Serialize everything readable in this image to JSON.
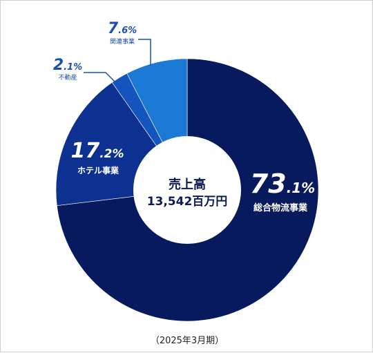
{
  "chart_data": {
    "type": "pie",
    "donut": true,
    "center_title": "売上高",
    "center_value": "13,542百万円",
    "footnote": "（2025年3月期）",
    "slices": [
      {
        "name": "総合物流事業",
        "int": "73",
        "dec": ".1%",
        "value": 73.1,
        "color": "#071a5e"
      },
      {
        "name": "ホテル事業",
        "int": "17",
        "dec": ".2%",
        "value": 17.2,
        "color": "#0d3190"
      },
      {
        "name": "不動産",
        "int": "2",
        "dec": ".1%",
        "value": 2.1,
        "color": "#1454bf"
      },
      {
        "name": "関連事業",
        "int": "7",
        "dec": ".6%",
        "value": 7.6,
        "color": "#1b78d4"
      }
    ]
  },
  "colors": {
    "label_small": "#1c4fa8",
    "border": "#cfcfcf"
  }
}
